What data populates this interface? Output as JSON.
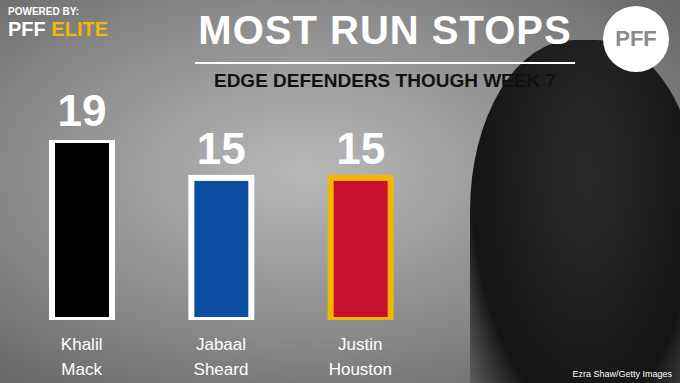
{
  "chart_data": {
    "type": "bar",
    "title": "MOST RUN STOPS",
    "subtitle": "EDGE DEFENDERS THOUGH WEEK 7",
    "annotations": [
      "POWERED BY:",
      "PFF ELITE",
      "PFF",
      "Ezra Shaw/Getty Images"
    ],
    "categories": [
      "Khalil Mack",
      "Jabaal Sheard",
      "Justin Houston"
    ],
    "values": [
      19,
      15,
      15
    ],
    "colors": [
      "#000000",
      "#0b4ea2",
      "#c8102e"
    ],
    "ylim": [
      0,
      19
    ],
    "yticks": [
      0,
      19
    ],
    "grid": false,
    "data_labels": true,
    "tick_labels": "x"
  }
}
